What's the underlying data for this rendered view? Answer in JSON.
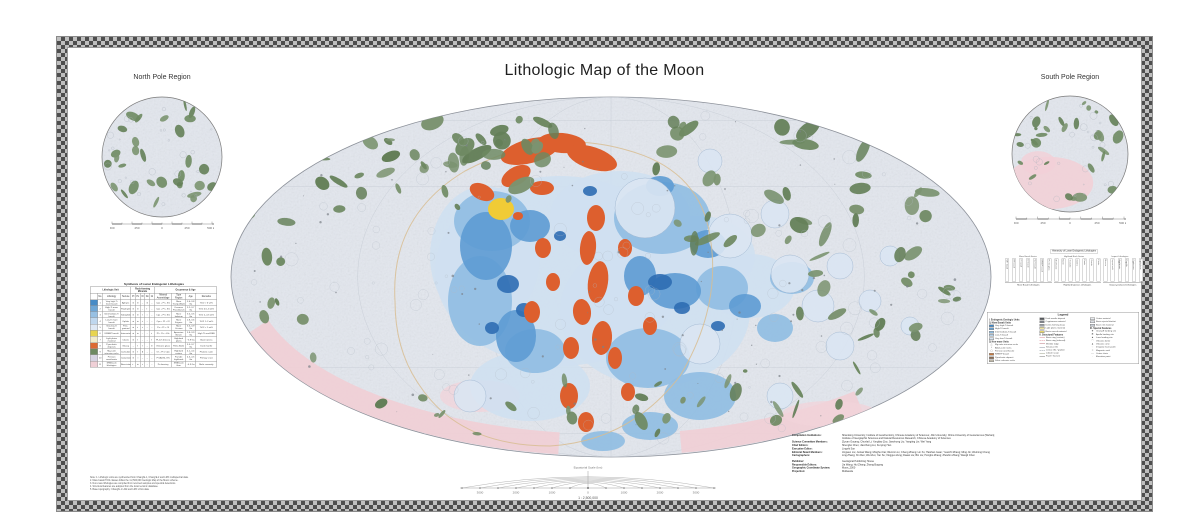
{
  "title": "Lithologic Map of the Moon",
  "insets": {
    "north": {
      "label": "North Pole Region"
    },
    "south": {
      "label": "South Pole Region"
    },
    "scale_labels": [
      "500",
      "250",
      "0",
      "250",
      "500 km"
    ]
  },
  "colors": {
    "map_base": "#e3e7ee",
    "green": "#6e8962",
    "orange": "#dd5f2e",
    "yellow": "#f0cb36",
    "pink": "#f1ced5",
    "pale_blue": "#cfe0f1",
    "mid_blue": "#8fbce2",
    "blue": "#5d9bd3",
    "dark_blue": "#2e6db3"
  },
  "table": {
    "title": "Synthesis of Lunar Endogenic Lithologies",
    "group_headers": [
      {
        "label": "Lithologic Unit",
        "span": 4
      },
      {
        "label": "Rock-forming Minerals",
        "span": 5
      },
      {
        "label": "Occurrence & Age",
        "span": 4
      }
    ],
    "columns": [
      "",
      "No.",
      "Lithology",
      "Texture",
      "Pl",
      "Px",
      "Ol",
      "Ilm",
      "Gl",
      "Mineral Assemblage",
      "Type Region",
      "Age",
      "Remarks"
    ],
    "rows": [
      {
        "color": "#478bc6",
        "no": "1",
        "lithology": "Very high-Ti mare basalt",
        "texture": "Aphyric",
        "minerals": [
          "●",
          "●",
          "–",
          "●",
          "–"
        ],
        "assemblage": "Cpx + Pl + Ilm",
        "region": "Mare Tranquillitatis",
        "age": "3.6–3.8 Ga",
        "remarks": "TiO2 > 6 wt%"
      },
      {
        "color": "#6fa7d6",
        "no": "2",
        "lithology": "High-Ti mare basalt",
        "texture": "Porphyritic",
        "minerals": [
          "●",
          "●",
          "–",
          "◐",
          "–"
        ],
        "assemblage": "Cpx + Pl + Ilm",
        "region": "Oceanus Procellarum",
        "age": "3.2–3.7 Ga",
        "remarks": "TiO2 4.5–6 wt%"
      },
      {
        "color": "#97c0e3",
        "no": "3",
        "lithology": "Intermediate-Ti basalt",
        "texture": "Subophitic",
        "minerals": [
          "●",
          "●",
          "◐",
          "○",
          "–"
        ],
        "assemblage": "Cpx + Pl ± Ilm",
        "region": "Mare Imbrium",
        "age": "3.0–3.5 Ga",
        "remarks": "TiO2 2–4.5 wt%"
      },
      {
        "color": "#bfd7ee",
        "no": "4",
        "lithology": "Low-Ti mare basalt",
        "texture": "Ophitic",
        "minerals": [
          "●",
          "●",
          "◐",
          "–",
          "–"
        ],
        "assemblage": "Cpx + Pl + Ol",
        "region": "Mare Frigoris",
        "age": "2.8–3.6 Ga",
        "remarks": "TiO2 1–2 wt%"
      },
      {
        "color": "#dfe9f5",
        "no": "5",
        "lithology": "Very low-Ti basalt",
        "texture": "Fine-grained",
        "minerals": [
          "●",
          "◐",
          "◐",
          "–",
          "–"
        ],
        "assemblage": "Px + Pl + Ol",
        "region": "Mare Crisium",
        "age": "3.3–3.9 Ga",
        "remarks": "TiO2 < 1 wt%"
      },
      {
        "color": "#e8d44f",
        "no": "6",
        "lithology": "KREEP basalt",
        "texture": "Intersertal",
        "minerals": [
          "●",
          "●",
          "–",
          "–",
          "◐"
        ],
        "assemblage": "Pl + Px + Kfs",
        "region": "Apennine Bench",
        "age": "3.8–3.9 Ga",
        "remarks": "High Th and REE"
      },
      {
        "color": "#f2ecca",
        "no": "7",
        "lithology": "Light plains material",
        "texture": "Clastic",
        "minerals": [
          "●",
          "◐",
          "–",
          "–",
          "◐"
        ],
        "assemblage": "Pl-rich breccia",
        "region": "Highland plains",
        "age": "~3.9 Ga",
        "remarks": "Basin ejecta"
      },
      {
        "color": "#dc6a33",
        "no": "8",
        "lithology": "Pyroclastic deposits",
        "texture": "Glassy",
        "minerals": [
          "–",
          "◐",
          "◐",
          "–",
          "●"
        ],
        "assemblage": "Volcanic glass",
        "region": "Rima Bode",
        "age": "3.5–3.7 Ga",
        "remarks": "Dark mantle"
      },
      {
        "color": "#6d8a61",
        "no": "9",
        "lithology": "Mg-suite intrusive rocks",
        "texture": "Cumulate",
        "minerals": [
          "●",
          "◐",
          "●",
          "–",
          "–"
        ],
        "assemblage": "Ol + Pl ± Opx",
        "region": "Highland craters",
        "age": "4.1–4.4 Ga",
        "remarks": "Plutonic suite"
      },
      {
        "color": "#d6d4e2",
        "no": "10",
        "lithology": "Ferroan anorthosite",
        "texture": "Cataclastic",
        "minerals": [
          "●",
          "○",
          "–",
          "–",
          "–"
        ],
        "assemblage": "Pl (An94–97)",
        "region": "Farside highlands",
        "age": "4.3–4.5 Ga",
        "remarks": "Primary crust"
      },
      {
        "color": "#efcfd6",
        "no": "11",
        "lithology": "SPA basin lithologies",
        "texture": "Brecciated",
        "minerals": [
          "◐",
          "●",
          "◐",
          "–",
          "–"
        ],
        "assemblage": "Px-bearing",
        "region": "SPA basin floor",
        "age": "~4.3 Ga",
        "remarks": "Mafic anomaly"
      }
    ],
    "footnotes": [
      "Note: 1. Lithologic units are synthesized from Chang'E-1, Chang'E-2 and LRO multispectral data.",
      "2. Mare basalt TiO2 classes follow the 1:2,500,000 Geologic Map of the Moon scheme.",
      "3. Non-mare lithologies are compiled from returned samples and spectral detections.",
      "4. Structural features are adopted from the lunar tectonic database.",
      "5. Base topography: Chang'E-1 LAM and LRO LOLA data."
    ]
  },
  "tree": {
    "title": "Hierarchy of Lunar Endogenic Lithologies",
    "subs": [
      "Mare Basalt Series",
      "Highland Rock Series",
      "Impact Lithologies"
    ],
    "leaves": [
      "VHT basalt",
      "HT basalt",
      "IT basalt",
      "LT basalt",
      "VLT basalt",
      "KREEP basalt",
      "Picritic glass",
      "Anorthosite",
      "Norite",
      "Troctolite",
      "Gabbro",
      "Dunite",
      "Granite",
      "Felsite",
      "Breccia",
      "Impact melt",
      "Agglutinate",
      "Regolith",
      "Cryptomare",
      "Light plains"
    ],
    "groups": [
      {
        "label": "Mare Basalt Lithologies",
        "count": 7
      },
      {
        "label": "Highland Igneous Lithologies",
        "count": 7
      },
      {
        "label": "Impact-produced Lithologies",
        "count": 6
      }
    ]
  },
  "legend": {
    "title": "Legend",
    "columns": [
      {
        "sections": [
          {
            "heading": "I. Endogenic Geologic Units",
            "items": []
          },
          {
            "heading": "1) Mare Basalt Units",
            "items": [
              {
                "swatch": "#3f86c5",
                "label": "Very high-Ti basalt"
              },
              {
                "swatch": "#63a0d3",
                "label": "High-Ti basalt"
              },
              {
                "swatch": "#8dbade",
                "label": "Intermediate-Ti basalt"
              },
              {
                "swatch": "#b7d2ea",
                "label": "Low-Ti basalt"
              },
              {
                "swatch": "#d9e6f4",
                "label": "Very low-Ti basalt"
              }
            ]
          },
          {
            "heading": "2) Non-mare Units",
            "items": [
              {
                "swatch": "sym-tri",
                "label": "Mg-suite intrusive rocks"
              },
              {
                "swatch": "sym-dot",
                "label": "Alkali-suite rocks"
              },
              {
                "swatch": "sym-sq",
                "label": "Ferroan anorthosite"
              },
              {
                "swatch": "#c3793f",
                "label": "KREEP basalt"
              },
              {
                "swatch": "#8a6a4f",
                "label": "Pyroclastic deposit"
              },
              {
                "swatch": "#bdb6a6",
                "label": "Silicic volcanic rocks"
              }
            ]
          }
        ]
      },
      {
        "sections": [
          {
            "heading": "",
            "items": [
              {
                "swatch": "#55585c",
                "label": "Dark mantle deposit"
              },
              {
                "swatch": "#7c8087",
                "label": "Cryptomare material"
              },
              {
                "swatch": "#9aa0a8",
                "label": "Dome-forming lavas"
              },
              {
                "swatch": "#efe3a0",
                "label": "Light plains material"
              },
              {
                "swatch": "#e8d56b",
                "label": "Basin massif material"
              }
            ]
          },
          {
            "heading": "II. Structural Features",
            "items": [
              {
                "swatch": "line-pink",
                "label": "Basin ring (certain)"
              },
              {
                "swatch": "line-pink-dash",
                "label": "Basin ring (inferred)"
              },
              {
                "swatch": "line-ridge",
                "label": "Wrinkle ridge"
              },
              {
                "swatch": "line-rille",
                "label": "Sinuous rille"
              },
              {
                "swatch": "line-graben",
                "label": "Linear rille / graben"
              },
              {
                "swatch": "line-scarp",
                "label": "Lobate scarp"
              },
              {
                "swatch": "line-fault",
                "label": "Fault / fracture"
              }
            ]
          }
        ]
      },
      {
        "sections": [
          {
            "heading": "",
            "items": [
              {
                "swatch": "#e9ebef",
                "label": "Crater material"
              },
              {
                "swatch": "#d9dde3",
                "label": "Basin ejecta blanket"
              },
              {
                "swatch": "#c6ccd4",
                "label": "Basin rim material"
              }
            ]
          },
          {
            "heading": "III. Special Features",
            "items": [
              {
                "swatch": "sym-star",
                "label": "Chang'E landing site"
              },
              {
                "swatch": "sym-flag",
                "label": "Apollo landing site"
              },
              {
                "swatch": "sym-tri2",
                "label": "Luna landing site"
              },
              {
                "swatch": "sym-dome",
                "label": "Volcanic dome"
              },
              {
                "swatch": "sym-cone",
                "label": "Volcanic cone"
              },
              {
                "swatch": "sym-imp",
                "label": "Irregular mare patch"
              },
              {
                "swatch": "sym-swirl",
                "label": "Magnetic swirl"
              },
              {
                "swatch": "sym-chain",
                "label": "Crater chain"
              },
              {
                "swatch": "sym-elev",
                "label": "Elevation point"
              }
            ]
          }
        ]
      }
    ]
  },
  "scale_fan": {
    "top_caption": "Equatorial Scale (km)",
    "caption": "1 : 2,500,000",
    "labels": [
      "3000",
      "2000",
      "1000",
      "0",
      "1000",
      "2000",
      "3000"
    ]
  },
  "credits": {
    "rows": [
      {
        "label": "Compilation Institutions:",
        "value": "Shandong University; Institute of Geochemistry, Chinese Academy of Sciences; Jilin University; China University of Geosciences (Wuhan); Institute of Geographic Sciences and Natural Resources Research, Chinese Academy of Sciences",
        "gap": false
      },
      {
        "label": "Science Committee Members:",
        "value": "Ziyuan Ouyang; Chunlai Li; Yongliao Zou; Jianzhong Liu; Yangting Lin; Wei Yang",
        "gap": false
      },
      {
        "label": "Chief Editors:",
        "value": "Shengbo Chen; Jianzhong Liu; Kunying Han",
        "gap": false
      },
      {
        "label": "Executive Editor:",
        "value": "Lingzhi Sun",
        "gap": false
      },
      {
        "label": "Editorial Board Members:",
        "value": "Jingwen Liu; Juntao Wang; Minghui Cai; Wenmin Lv; Cheng Zhang; Lin Xu; Haishan Guan; Yuanzhi Zhang; Ming Jin; Weiming Cheng",
        "gap": false
      },
      {
        "label": "Cartographers:",
        "value": "Ling Zhang; Xin Ren; Wei Zuo; Yan Su; Xingguo Zeng; Dawei Liu; Bin Liu; Hongbo Zhang; Zhoubin Zhang; Wangli Chen",
        "gap": false
      },
      {
        "label": "Publisher:",
        "value": "Geological Publishing House",
        "gap": true
      },
      {
        "label": "Responsible Editors:",
        "value": "Jia Wang; Hui Zhang; Zhang Bogong",
        "gap": false
      },
      {
        "label": "Geographic Coordinate System:",
        "value": "Moon_2000",
        "gap": false
      },
      {
        "label": "Projection:",
        "value": "Mollweide",
        "gap": false
      }
    ]
  }
}
